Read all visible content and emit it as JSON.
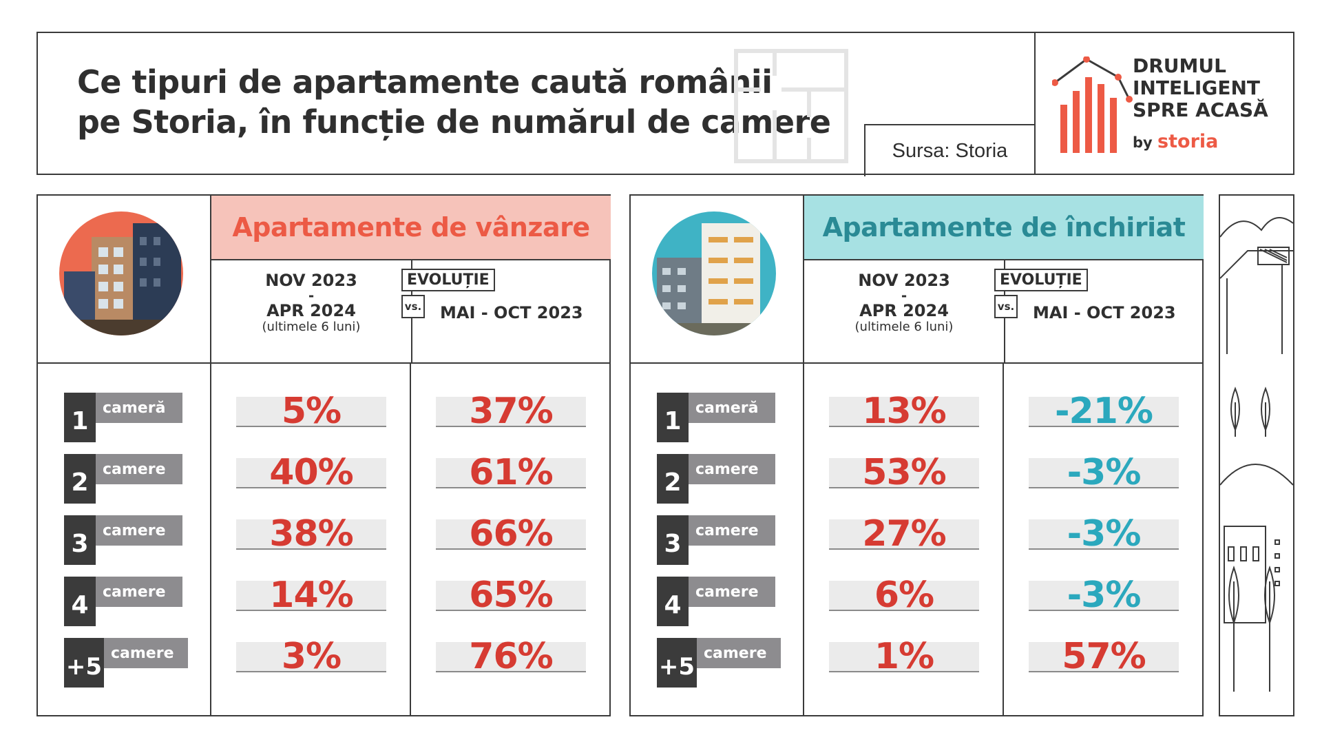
{
  "header": {
    "title_line1": "Ce tipuri de apartamente caută românii",
    "title_line2": "pe Storia, în funcție de numărul de camere",
    "source": "Sursa: Storia",
    "brand_line1": "DRUMUL",
    "brand_line2": "INTELIGENT",
    "brand_line3": "SPRE ACASĂ",
    "brand_by": "by",
    "brand_storia": "storia"
  },
  "colors": {
    "sale_accent": "#ec5a45",
    "sale_header_bg": "#f6c3ba",
    "rent_accent": "#2a8a95",
    "rent_header_bg": "#a7e1e3",
    "positive": "#d63b32",
    "negative": "#2ba8bd"
  },
  "rooms": [
    {
      "num": "1",
      "label": "cameră"
    },
    {
      "num": "2",
      "label": "camere"
    },
    {
      "num": "3",
      "label": "camere"
    },
    {
      "num": "4",
      "label": "camere"
    },
    {
      "num": "+5",
      "label": "camere"
    }
  ],
  "sale": {
    "title": "Apartamente de vânzare",
    "period1_a": "NOV 2023",
    "period1_dash": "-",
    "period1_b": "APR 2024",
    "period1_sub": "(ultimele 6 luni)",
    "evo_label": "EVOLUȚIE",
    "vs_label": "vs.",
    "period2": "MAI - OCT 2023",
    "shares": [
      "5%",
      "40%",
      "38%",
      "14%",
      "3%"
    ],
    "evolution": [
      "37%",
      "61%",
      "66%",
      "65%",
      "76%"
    ]
  },
  "rent": {
    "title": "Apartamente de închiriat",
    "period1_a": "NOV 2023",
    "period1_dash": "-",
    "period1_b": "APR 2024",
    "period1_sub": "(ultimele 6 luni)",
    "evo_label": "EVOLUȚIE",
    "vs_label": "vs.",
    "period2": "MAI - OCT 2023",
    "shares": [
      "13%",
      "53%",
      "27%",
      "6%",
      "1%"
    ],
    "evolution": [
      "-21%",
      "-3%",
      "-3%",
      "-3%",
      "57%"
    ]
  },
  "chart_data": {
    "type": "table",
    "title": "Ce tipuri de apartamente caută românii pe Storia, în funcție de numărul de camere",
    "categories": [
      "1 cameră",
      "2 camere",
      "3 camere",
      "4 camere",
      "+5 camere"
    ],
    "series": [
      {
        "name": "Apartamente de vânzare NOV 2023 - APR 2024",
        "values": [
          5,
          40,
          38,
          14,
          3
        ]
      },
      {
        "name": "Apartamente de vânzare EVOLUȚIE vs. MAI - OCT 2023",
        "values": [
          37,
          61,
          66,
          65,
          76
        ]
      },
      {
        "name": "Apartamente de închiriat NOV 2023 - APR 2024",
        "values": [
          13,
          53,
          27,
          6,
          1
        ]
      },
      {
        "name": "Apartamente de închiriat EVOLUȚIE vs. MAI - OCT 2023",
        "values": [
          -21,
          -3,
          -3,
          -3,
          57
        ]
      }
    ]
  }
}
